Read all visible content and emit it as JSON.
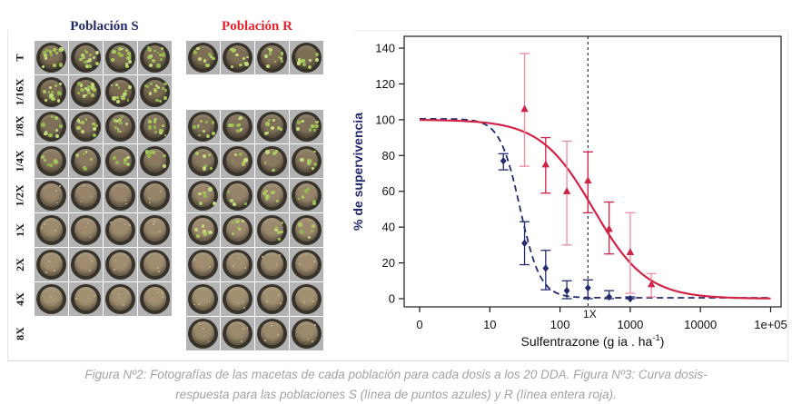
{
  "photo_grid": {
    "populations": [
      {
        "id": "S",
        "label": "Población S",
        "color": "#232a70"
      },
      {
        "id": "R",
        "label": "Población R",
        "color": "#e4232b"
      }
    ],
    "photos_per_row": 4,
    "rows": [
      {
        "label": "T",
        "s": true,
        "r": true,
        "s_green": 3,
        "r_green": 2
      },
      {
        "label": "1/16X",
        "s": true,
        "r": false,
        "s_green": 3,
        "r_green": 0
      },
      {
        "label": "1/8X",
        "s": true,
        "r": true,
        "s_green": 2,
        "r_green": 2
      },
      {
        "label": "1/4X",
        "s": true,
        "r": true,
        "s_green": 1,
        "r_green": 1
      },
      {
        "label": "1/2X",
        "s": true,
        "r": true,
        "s_green": 0,
        "r_green": 1
      },
      {
        "label": "1X",
        "s": true,
        "r": true,
        "s_green": 0,
        "r_green": 1
      },
      {
        "label": "2X",
        "s": true,
        "r": true,
        "s_green": 0,
        "r_green": 0
      },
      {
        "label": "4X",
        "s": true,
        "r": true,
        "s_green": 0,
        "r_green": 0
      },
      {
        "label": "8X",
        "s": false,
        "r": true,
        "s_green": 0,
        "r_green": 0
      }
    ]
  },
  "chart_data": {
    "type": "line",
    "title": "",
    "xlabel_prefix": "Sulfentrazone (g ia . ha",
    "xlabel_sup": "-1",
    "xlabel_suffix": ")",
    "ylabel": "% de supervivencia",
    "x_scale": "log",
    "ylim": [
      -5,
      146
    ],
    "y_ticks": [
      0,
      20,
      40,
      60,
      80,
      100,
      120,
      140
    ],
    "x_ticks": [
      {
        "label": "0",
        "value": 0,
        "plot_at": 1
      },
      {
        "label": "10",
        "value": 10,
        "plot_at": 10
      },
      {
        "label": "100",
        "value": 100,
        "plot_at": 100
      },
      {
        "label": "1000",
        "value": 1000,
        "plot_at": 1000
      },
      {
        "label": "10000",
        "value": 10000,
        "plot_at": 10000
      },
      {
        "label": "1e+05",
        "value": 100000,
        "plot_at": 100000
      }
    ],
    "reference_line": {
      "x": 250,
      "label": "1X"
    },
    "series": [
      {
        "name": "Población S",
        "color": "#232a6e",
        "line_style": "dashed",
        "marker": "diamond",
        "fit": {
          "top": 100,
          "ed50": 27,
          "slope": 3,
          "floor": 0.5
        },
        "points": [
          {
            "x": 15.6,
            "y": 77,
            "lo": 72,
            "hi": 81,
            "shade": "dark"
          },
          {
            "x": 31.25,
            "y": 31,
            "lo": 19,
            "hi": 43,
            "shade": "dark"
          },
          {
            "x": 62.5,
            "y": 17,
            "lo": 5,
            "hi": 27,
            "shade": "dark"
          },
          {
            "x": 125,
            "y": 4.5,
            "lo": 0,
            "hi": 10,
            "shade": "dark"
          },
          {
            "x": 250,
            "y": 6,
            "lo": 0,
            "hi": 10.5,
            "shade": "dark"
          },
          {
            "x": 500,
            "y": 1,
            "lo": 0,
            "hi": 4.5,
            "shade": "dark"
          },
          {
            "x": 1000,
            "y": 0,
            "lo": 0,
            "hi": 1,
            "shade": "dark"
          }
        ]
      },
      {
        "name": "Población R",
        "color": "#cf2347",
        "color_light": "#ef8ba0",
        "line_style": "solid",
        "marker": "triangle",
        "fit": {
          "top": 100,
          "ed50": 300,
          "slope": 1.15,
          "floor": 0
        },
        "points": [
          {
            "x": 31.25,
            "y": 106,
            "lo": 74,
            "hi": 137,
            "shade": "light"
          },
          {
            "x": 62.5,
            "y": 75,
            "lo": 59,
            "hi": 90,
            "shade": "dark"
          },
          {
            "x": 125,
            "y": 60,
            "lo": 30,
            "hi": 88,
            "shade": "light"
          },
          {
            "x": 250,
            "y": 66,
            "lo": 48,
            "hi": 82,
            "shade": "dark"
          },
          {
            "x": 500,
            "y": 39,
            "lo": 25,
            "hi": 54,
            "shade": "dark"
          },
          {
            "x": 1000,
            "y": 26,
            "lo": 3,
            "hi": 48,
            "shade": "light"
          },
          {
            "x": 2000,
            "y": 8,
            "lo": 1,
            "hi": 14,
            "shade": "light"
          }
        ]
      }
    ]
  },
  "caption": {
    "line1": "Figura Nº2: Fotografías de las macetas de cada población para cada dosis a los 20 DDA. Figura Nº3: Curva dosis-",
    "line2": "respuesta para las poblaciones S (línea de puntos azules) y R (línea entera roja)."
  }
}
